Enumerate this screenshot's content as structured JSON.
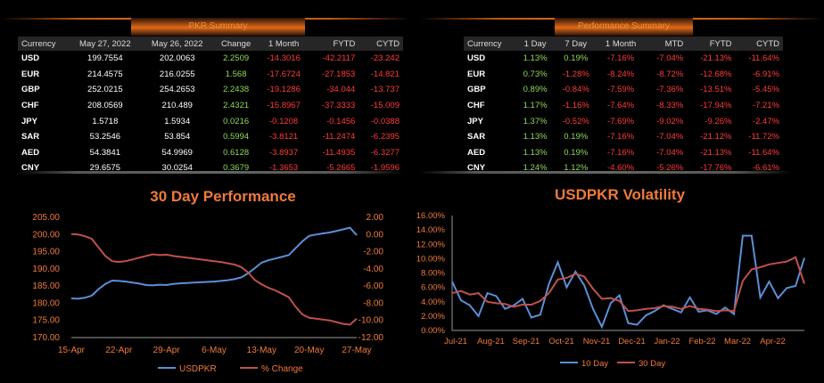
{
  "pkr_summary": {
    "title": "PKR Summary",
    "headers": [
      "Currency",
      "May 27, 2022",
      "May 26, 2022",
      "Change",
      "1 Month",
      "FYTD",
      "CYTD"
    ],
    "rows": [
      [
        "USD",
        "199.7554",
        "202.0063",
        "2.2509",
        "-14.3016",
        "-42.2117",
        "-23.242"
      ],
      [
        "EUR",
        "214.4575",
        "216.0255",
        "1.568",
        "-17.6724",
        "-27.1853",
        "-14.821"
      ],
      [
        "GBP",
        "252.0215",
        "254.2653",
        "2.2438",
        "-19.1286",
        "-34.044",
        "-13.737"
      ],
      [
        "CHF",
        "208.0569",
        "210.489",
        "2.4321",
        "-15.8967",
        "-37.3333",
        "-15.009"
      ],
      [
        "JPY",
        "1.5718",
        "1.5934",
        "0.0216",
        "-0.1208",
        "-0.1456",
        "-0.0388"
      ],
      [
        "SAR",
        "53.2546",
        "53.854",
        "0.5994",
        "-3.8121",
        "-11.2474",
        "-6.2395"
      ],
      [
        "AED",
        "54.3841",
        "54.9969",
        "0.6128",
        "-3.8937",
        "-11.4935",
        "-6.3277"
      ],
      [
        "CNY",
        "29.6575",
        "30.0254",
        "0.3679",
        "-1.3653",
        "-5.2665",
        "-1.9596"
      ]
    ]
  },
  "performance_summary": {
    "title": "Performance Summary",
    "headers": [
      "Currency",
      "1 Day",
      "7 Day",
      "1 Month",
      "MTD",
      "FYTD",
      "CYTD"
    ],
    "rows": [
      [
        "USD",
        "1.13%",
        "0.19%",
        "-7.16%",
        "-7.04%",
        "-21.13%",
        "-11.64%"
      ],
      [
        "EUR",
        "0.73%",
        "-1.28%",
        "-8.24%",
        "-8.72%",
        "-12.68%",
        "-6.91%"
      ],
      [
        "GBP",
        "0.89%",
        "-0.84%",
        "-7.59%",
        "-7.36%",
        "-13.51%",
        "-5.45%"
      ],
      [
        "CHF",
        "1.17%",
        "-1.16%",
        "-7.64%",
        "-8.33%",
        "-17.94%",
        "-7.21%"
      ],
      [
        "JPY",
        "1.37%",
        "-0.52%",
        "-7.69%",
        "-9.02%",
        "-9.26%",
        "-2.47%"
      ],
      [
        "SAR",
        "1.13%",
        "0.19%",
        "-7.16%",
        "-7.04%",
        "-21.12%",
        "-11.72%"
      ],
      [
        "AED",
        "1.13%",
        "0.19%",
        "-7.16%",
        "-7.04%",
        "-21.13%",
        "-11.64%"
      ],
      [
        "CNY",
        "1.24%",
        "1.12%",
        "-4.60%",
        "-5.26%",
        "-17.76%",
        "-6.61%"
      ]
    ]
  },
  "colors": {
    "positive": "#8fd85a",
    "negative": "#ff3b3b",
    "orange": "#f07a3a",
    "blue": "#5b8fd6",
    "red": "#c0504d"
  },
  "chart_data": [
    {
      "type": "line",
      "title": "30 Day Performance",
      "x_tick_labels": [
        "15-Apr",
        "22-Apr",
        "29-Apr",
        "6-May",
        "13-May",
        "20-May",
        "27-May"
      ],
      "ylim_left": [
        170,
        205
      ],
      "y_ticks_left": [
        "170.00",
        "175.00",
        "180.00",
        "185.00",
        "190.00",
        "195.00",
        "200.00",
        "205.00"
      ],
      "ylim_right": [
        -12,
        2
      ],
      "y_ticks_right": [
        "-12.00",
        "-10.00",
        "-8.00",
        "-6.00",
        "-4.00",
        "-2.00",
        "0.00",
        "2.00"
      ],
      "x": [
        0,
        1,
        2,
        3,
        4,
        5,
        6,
        7,
        8,
        9,
        10,
        11,
        12,
        13,
        14,
        15,
        16,
        17,
        18,
        19,
        20,
        21,
        22,
        23,
        24,
        25,
        26,
        27,
        28,
        29,
        30,
        31,
        32,
        33,
        34,
        35,
        36,
        37,
        38,
        39,
        40,
        41,
        42
      ],
      "series": [
        {
          "name": "USDPKR",
          "axis": "left",
          "values": [
            181.4,
            181.3,
            181.6,
            182.2,
            184.1,
            185.6,
            186.6,
            186.5,
            186.3,
            186.0,
            185.7,
            185.3,
            185.2,
            185.4,
            185.3,
            185.6,
            185.8,
            185.9,
            186.0,
            186.1,
            186.2,
            186.3,
            186.5,
            186.7,
            187.0,
            187.5,
            188.7,
            190.2,
            191.8,
            192.5,
            193.0,
            193.5,
            194.0,
            196.0,
            198.0,
            199.6,
            200.0,
            200.3,
            200.6,
            201.0,
            201.5,
            202.0,
            199.8
          ]
        },
        {
          "name": "% Change",
          "axis": "right",
          "values": [
            0.05,
            0.0,
            -0.2,
            -0.5,
            -1.5,
            -2.5,
            -3.1,
            -3.2,
            -3.1,
            -2.9,
            -2.7,
            -2.5,
            -2.3,
            -2.4,
            -2.35,
            -2.5,
            -2.6,
            -2.7,
            -2.8,
            -2.9,
            -3.0,
            -3.1,
            -3.2,
            -3.35,
            -3.5,
            -3.8,
            -4.4,
            -5.3,
            -5.8,
            -6.2,
            -6.5,
            -6.9,
            -7.3,
            -8.4,
            -9.3,
            -9.7,
            -9.8,
            -9.9,
            -10.0,
            -10.2,
            -10.4,
            -10.5,
            -9.8
          ]
        }
      ]
    },
    {
      "type": "line",
      "title": "USDPKR Volatility",
      "x_tick_labels": [
        "Jul-21",
        "Aug-21",
        "Sep-21",
        "Oct-21",
        "Nov-21",
        "Dec-21",
        "Jan-22",
        "Feb-22",
        "Mar-22",
        "Apr-22"
      ],
      "ylim": [
        0,
        16
      ],
      "y_ticks": [
        "0.00%",
        "2.00%",
        "4.00%",
        "6.00%",
        "8.00%",
        "10.00%",
        "12.00%",
        "14.00%",
        "16.00%"
      ],
      "x": [
        0,
        0.25,
        0.5,
        0.75,
        1,
        1.25,
        1.5,
        1.75,
        2,
        2.25,
        2.5,
        2.75,
        3,
        3.25,
        3.5,
        3.75,
        4,
        4.25,
        4.5,
        4.75,
        5,
        5.25,
        5.5,
        5.75,
        6,
        6.25,
        6.5,
        6.75,
        7,
        7.25,
        7.5,
        7.75,
        8,
        8.25,
        8.5,
        8.75,
        9,
        9.25,
        9.5,
        9.75,
        10
      ],
      "series": [
        {
          "name": "10 Day",
          "values": [
            6.8,
            4.2,
            3.5,
            2.0,
            5.2,
            4.8,
            3.0,
            3.5,
            4.4,
            1.8,
            2.2,
            6.5,
            9.5,
            6.0,
            8.2,
            6.3,
            3.0,
            0.5,
            3.8,
            4.9,
            1.0,
            0.8,
            2.1,
            2.7,
            3.5,
            3.0,
            2.5,
            4.6,
            2.6,
            2.8,
            2.3,
            3.2,
            2.3,
            13.2,
            13.2,
            4.6,
            6.8,
            4.5,
            5.9,
            6.2,
            10.1
          ]
        },
        {
          "name": "30 Day",
          "values": [
            5.2,
            5.5,
            5.0,
            5.2,
            4.0,
            3.8,
            3.7,
            3.3,
            3.6,
            3.6,
            4.1,
            5.2,
            7.1,
            7.3,
            7.9,
            7.5,
            5.8,
            4.4,
            4.5,
            4.1,
            2.7,
            2.8,
            3.0,
            3.1,
            3.4,
            3.3,
            3.0,
            3.4,
            3.0,
            2.9,
            2.7,
            2.8,
            2.7,
            6.9,
            8.5,
            8.8,
            9.2,
            9.4,
            9.6,
            10.2,
            6.5
          ]
        }
      ]
    }
  ]
}
